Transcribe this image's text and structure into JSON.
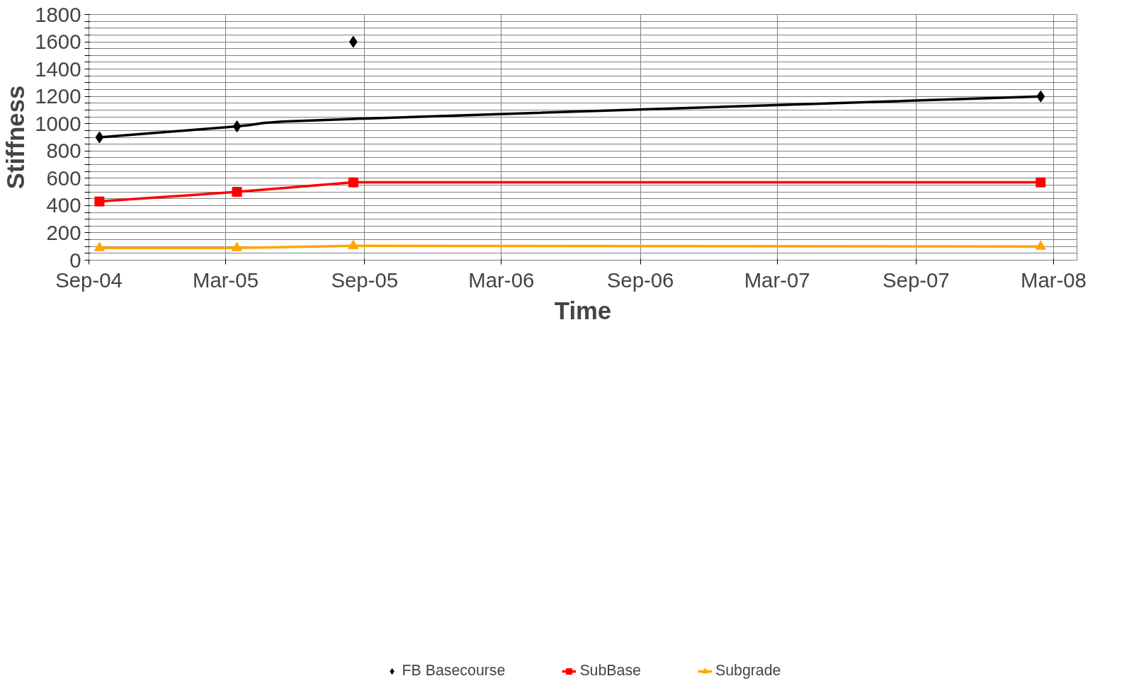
{
  "chart_data": {
    "type": "line",
    "xlabel": "Time",
    "ylabel": "Stiffness",
    "xlim": [
      "2004-09-01",
      "2008-04-01"
    ],
    "xticks": [
      {
        "value": "2004-09-01",
        "label": "Sep-04"
      },
      {
        "value": "2005-03-01",
        "label": "Mar-05"
      },
      {
        "value": "2005-09-01",
        "label": "Sep-05"
      },
      {
        "value": "2006-03-01",
        "label": "Mar-06"
      },
      {
        "value": "2006-09-01",
        "label": "Sep-06"
      },
      {
        "value": "2007-03-01",
        "label": "Mar-07"
      },
      {
        "value": "2007-09-01",
        "label": "Sep-07"
      },
      {
        "value": "2008-03-01",
        "label": "Mar-08"
      }
    ],
    "ylim": [
      0,
      1800
    ],
    "yticks": [
      0,
      {
        "value": 50,
        "label": null
      },
      {
        "value": 100,
        "label": null
      },
      {
        "value": 150,
        "label": null
      },
      200,
      {
        "value": 250,
        "label": null
      },
      {
        "value": 300,
        "label": null
      },
      {
        "value": 350,
        "label": null
      },
      400,
      {
        "value": 450,
        "label": null
      },
      {
        "value": 500,
        "label": null
      },
      {
        "value": 550,
        "label": null
      },
      600,
      {
        "value": 650,
        "label": null
      },
      {
        "value": 700,
        "label": null
      },
      {
        "value": 750,
        "label": null
      },
      800,
      {
        "value": 850,
        "label": null
      },
      {
        "value": 900,
        "label": null
      },
      {
        "value": 950,
        "label": null
      },
      1000,
      {
        "value": 1050,
        "label": null
      },
      {
        "value": 1100,
        "label": null
      },
      {
        "value": 1150,
        "label": null
      },
      1200,
      {
        "value": 1250,
        "label": null
      },
      {
        "value": 1300,
        "label": null
      },
      {
        "value": 1350,
        "label": null
      },
      1400,
      {
        "value": 1450,
        "label": null
      },
      {
        "value": 1500,
        "label": null
      },
      {
        "value": 1550,
        "label": null
      },
      1600,
      {
        "value": 1650,
        "label": null
      },
      {
        "value": 1700,
        "label": null
      },
      {
        "value": 1750,
        "label": null
      },
      1800
    ],
    "grid": true,
    "legend": "bottom",
    "x": [
      "2004-09-15",
      "2005-03-16",
      "2005-08-17",
      "2008-02-13"
    ],
    "series": [
      {
        "name": "FB Basecourse",
        "type": "scatter",
        "marker": "diamond",
        "color": "#000000",
        "values": [
          900,
          980,
          1600,
          1200
        ]
      },
      {
        "name": "SubBase",
        "marker": "square",
        "color": "#ff0000",
        "values": [
          430,
          500,
          570,
          570
        ]
      },
      {
        "name": "Subgrade",
        "marker": "triangle",
        "color": "#ffa500",
        "values": [
          90,
          90,
          105,
          100
        ]
      },
      {
        "marker": "none",
        "color": "#000000",
        "x": [
          "2004-09-15",
          "2005-03-16",
          "2005-04-01",
          "2005-04-20",
          "2005-05-15",
          "2005-08-17",
          "2008-02-13"
        ],
        "values": [
          900,
          980,
          990,
          1005,
          1015,
          1035,
          1200
        ]
      }
    ]
  }
}
